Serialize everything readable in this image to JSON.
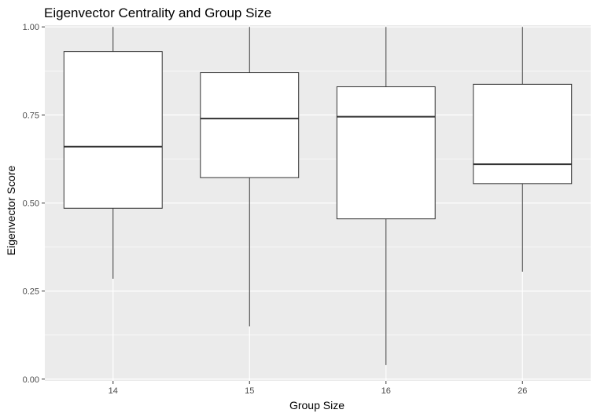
{
  "chart_data": {
    "type": "box",
    "title": "Eigenvector Centrality and Group Size",
    "xlabel": "Group Size",
    "ylabel": "Eigenvector Score",
    "categories": [
      "14",
      "15",
      "16",
      "26"
    ],
    "boxes": [
      {
        "category": "14",
        "whisker_low": 0.285,
        "q1": 0.485,
        "median": 0.66,
        "q3": 0.93,
        "whisker_high": 1.0
      },
      {
        "category": "15",
        "whisker_low": 0.15,
        "q1": 0.572,
        "median": 0.74,
        "q3": 0.87,
        "whisker_high": 1.0
      },
      {
        "category": "16",
        "whisker_low": 0.04,
        "q1": 0.455,
        "median": 0.745,
        "q3": 0.83,
        "whisker_high": 1.0
      },
      {
        "category": "26",
        "whisker_low": 0.305,
        "q1": 0.555,
        "median": 0.61,
        "q3": 0.837,
        "whisker_high": 1.0
      }
    ],
    "yticks": [
      0.0,
      0.25,
      0.5,
      0.75,
      1.0
    ],
    "ytick_labels": [
      "0.00",
      "0.25",
      "0.50",
      "0.75",
      "1.00"
    ],
    "ylim": [
      -0.005,
      1.005
    ],
    "grid": true,
    "panel_background": "#ebebeb",
    "grid_color": "#ffffff",
    "box_fill": "#ffffff",
    "box_stroke": "#333333"
  }
}
